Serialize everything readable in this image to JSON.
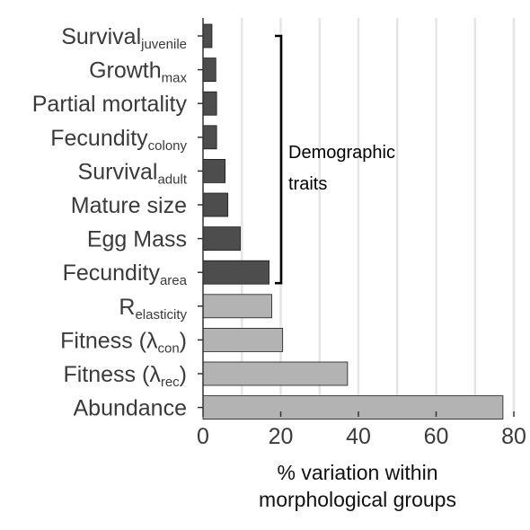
{
  "chart_data": {
    "type": "bar",
    "orientation": "horizontal",
    "categories": [
      {
        "main": "Survival",
        "sub": "juvenile",
        "group": "demographic"
      },
      {
        "main": "Growth",
        "sub": "max",
        "group": "demographic"
      },
      {
        "main": "Partial mortality",
        "sub": "",
        "group": "demographic"
      },
      {
        "main": "Fecundity",
        "sub": "colony",
        "group": "demographic"
      },
      {
        "main": "Survival",
        "sub": "adult",
        "group": "demographic"
      },
      {
        "main": "Mature size",
        "sub": "",
        "group": "demographic"
      },
      {
        "main": "Egg Mass",
        "sub": "",
        "group": "demographic"
      },
      {
        "main": "Fecundity",
        "sub": "area",
        "group": "demographic"
      },
      {
        "main": "R",
        "sub": "elasticity",
        "group": "other"
      },
      {
        "main": "Fitness (",
        "greek": "λ",
        "sub": "con",
        "close": ")",
        "group": "other"
      },
      {
        "main": "Fitness (",
        "greek": "λ",
        "sub": "rec",
        "close": ")",
        "group": "other"
      },
      {
        "main": "Abundance",
        "sub": "",
        "group": "other"
      }
    ],
    "values": [
      2.3,
      3.3,
      3.5,
      3.5,
      5.7,
      6.4,
      9.6,
      17.0,
      17.7,
      20.5,
      37.2,
      77.2
    ],
    "colors": {
      "demographic": "#4d4d4d",
      "other": "#b3b3b3",
      "bar_edge": "#1a1a1a",
      "grid": "#e5e5e5",
      "axis": "#333333"
    },
    "xlim": [
      0,
      80
    ],
    "xticks": [
      0,
      20,
      40,
      60,
      80
    ],
    "xlabel_line1": "% variation within",
    "xlabel_line2": "morphological groups",
    "annotation": {
      "text_line1": "Demographic",
      "text_line2": "traits",
      "from_index": 0,
      "to_index": 7
    },
    "grid": "vertical"
  }
}
